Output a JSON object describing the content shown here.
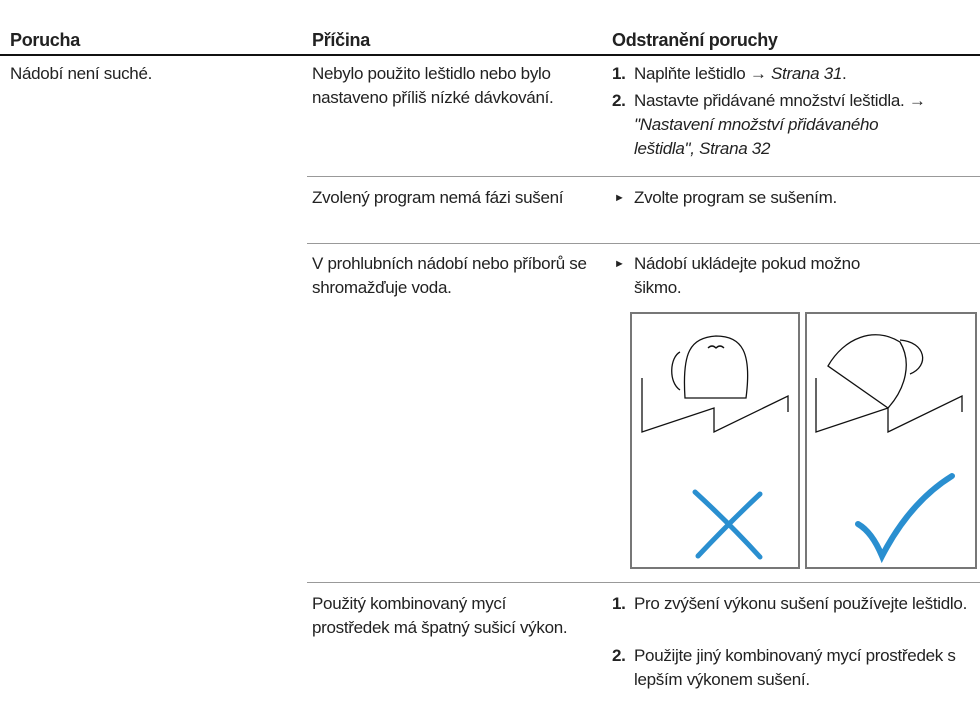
{
  "table": {
    "headers": [
      "Porucha",
      "Příčina",
      "Odstranění poruchy"
    ],
    "fault": "Nádobí není suché.",
    "causes": [
      {
        "cause": "Nebylo použito leštidlo nebo bylo nastaveno příliš nízké dávkování.",
        "steps": [
          {
            "number": "1.",
            "text": "Naplňte leštidlo →",
            "ref": "Strana 31",
            "end": "."
          },
          {
            "number": "2.",
            "text": "Nastavte přidávané množství leštidla. →",
            "ref": "\"Nastavení množství přidávaného leštidla\", Strana 32"
          }
        ]
      },
      {
        "cause": "Zvolený program nemá fázi sušení",
        "action": "Zvolte program se sušením."
      },
      {
        "cause": "V prohlubních nádobí nebo příborů se shromažďuje voda.",
        "action": "Nádobí ukládejte pokud možno šikmo."
      },
      {
        "cause": "Použitý kombinovaný mycí prostředek má špatný sušicí výkon.",
        "steps": [
          {
            "number": "1.",
            "text": "Pro zvýšení výkonu sušení používejte leštidlo."
          },
          {
            "number": "2.",
            "text": "Použijte jiný kombinovaný mycí prostředek s lepším výkonem sušení."
          }
        ]
      }
    ]
  }
}
